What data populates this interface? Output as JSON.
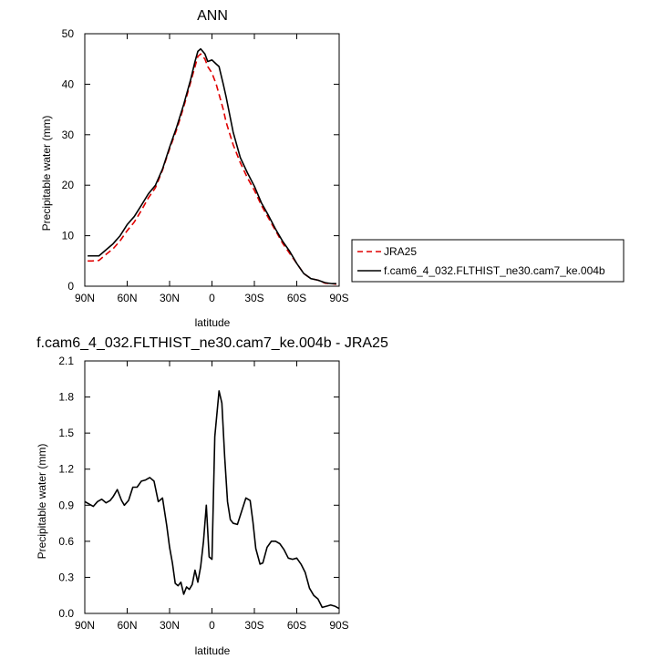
{
  "chart_data": [
    {
      "type": "line",
      "title": "ANN",
      "xlabel": "latitude",
      "ylabel": "Precipitable water (mm)",
      "xlim": [
        90,
        -90
      ],
      "ylim": [
        0,
        50
      ],
      "x_ticks": [
        90,
        60,
        30,
        0,
        -30,
        -60,
        -90
      ],
      "x_tick_labels": [
        "90N",
        "60N",
        "30N",
        "0",
        "30S",
        "60S",
        "90S"
      ],
      "y_ticks": [
        0,
        10,
        20,
        30,
        40,
        50
      ],
      "y_tick_labels": [
        "0",
        "10",
        "20",
        "30",
        "40",
        "50"
      ],
      "legend_position": "right",
      "series": [
        {
          "name": "JRA25",
          "color": "#e00000",
          "dash": "dashed",
          "x": [
            88,
            85,
            80,
            75,
            70,
            65,
            60,
            55,
            50,
            45,
            40,
            35,
            30,
            25,
            20,
            15,
            12,
            10,
            8,
            5,
            3,
            0,
            -3,
            -5,
            -8,
            -10,
            -15,
            -20,
            -25,
            -30,
            -35,
            -40,
            -45,
            -50,
            -55,
            -60,
            -65,
            -70,
            -75,
            -80,
            -85,
            -88
          ],
          "y": [
            5.0,
            5.0,
            5.1,
            6.3,
            7.4,
            9.0,
            11.0,
            12.7,
            15.0,
            17.5,
            19.5,
            23.0,
            27.2,
            31.0,
            35.5,
            40.5,
            43.5,
            45.5,
            46.0,
            45.0,
            43.5,
            42.2,
            40.0,
            38.0,
            35.0,
            32.5,
            28.0,
            24.5,
            21.5,
            19.0,
            16.0,
            13.5,
            11.0,
            8.5,
            6.5,
            4.5,
            2.5,
            1.5,
            1.2,
            0.6,
            0.5,
            0.4
          ]
        },
        {
          "name": "f.cam6_4_032.FLTHIST_ne30.cam7_ke.004b",
          "color": "#000000",
          "dash": "solid",
          "x": [
            88,
            85,
            80,
            75,
            70,
            65,
            60,
            55,
            50,
            45,
            40,
            35,
            30,
            25,
            20,
            15,
            12,
            10,
            8,
            5,
            3,
            0,
            -3,
            -5,
            -8,
            -10,
            -15,
            -20,
            -25,
            -30,
            -35,
            -40,
            -45,
            -50,
            -55,
            -60,
            -65,
            -70,
            -75,
            -80,
            -85,
            -88
          ],
          "y": [
            6.0,
            6.0,
            6.0,
            7.2,
            8.4,
            10.0,
            12.2,
            13.8,
            16.0,
            18.3,
            20.0,
            23.2,
            27.5,
            31.5,
            36.0,
            41.0,
            44.5,
            46.5,
            47.0,
            46.0,
            44.5,
            44.8,
            44.0,
            43.5,
            40.0,
            37.5,
            30.5,
            25.5,
            22.5,
            19.8,
            16.5,
            14.0,
            11.3,
            8.9,
            6.9,
            4.5,
            2.5,
            1.5,
            1.2,
            0.7,
            0.5,
            0.5
          ]
        }
      ]
    },
    {
      "type": "line",
      "title": "f.cam6_4_032.FLTHIST_ne30.cam7_ke.004b - JRA25",
      "xlabel": "latitude",
      "ylabel": "Precipitable water (mm)",
      "xlim": [
        90,
        -90
      ],
      "ylim": [
        0,
        2.1
      ],
      "x_ticks": [
        90,
        60,
        30,
        0,
        -30,
        -60,
        -90
      ],
      "x_tick_labels": [
        "90N",
        "60N",
        "30N",
        "0",
        "30S",
        "60S",
        "90S"
      ],
      "y_ticks": [
        0,
        0.3,
        0.6,
        0.9,
        1.2,
        1.5,
        1.8,
        2.1
      ],
      "y_tick_labels": [
        "0.0",
        "0.3",
        "0.6",
        "0.9",
        "1.2",
        "1.5",
        "1.8",
        "2.1"
      ],
      "series": [
        {
          "color": "#000000",
          "x": [
            90,
            87,
            84,
            81,
            78,
            75,
            72,
            70,
            67,
            64,
            62,
            59,
            56,
            53,
            50,
            47,
            44,
            41,
            38,
            35,
            32,
            30,
            28,
            26,
            24,
            22,
            20,
            18,
            16,
            14,
            12,
            10,
            8,
            6,
            4,
            2,
            0,
            -2,
            -5,
            -7,
            -9,
            -11,
            -13,
            -15,
            -18,
            -21,
            -24,
            -27,
            -29,
            -31,
            -34,
            -36,
            -39,
            -42,
            -45,
            -48,
            -51,
            -54,
            -57,
            -60,
            -63,
            -66,
            -69,
            -72,
            -75,
            -78,
            -81,
            -84,
            -87,
            -90
          ],
          "y": [
            0.93,
            0.91,
            0.89,
            0.93,
            0.95,
            0.92,
            0.94,
            0.97,
            1.03,
            0.94,
            0.9,
            0.94,
            1.05,
            1.05,
            1.1,
            1.11,
            1.13,
            1.1,
            0.93,
            0.96,
            0.73,
            0.55,
            0.42,
            0.25,
            0.23,
            0.26,
            0.16,
            0.22,
            0.2,
            0.24,
            0.36,
            0.26,
            0.39,
            0.6,
            0.9,
            0.47,
            0.45,
            1.47,
            1.85,
            1.75,
            1.3,
            0.93,
            0.78,
            0.75,
            0.74,
            0.85,
            0.96,
            0.94,
            0.76,
            0.54,
            0.41,
            0.42,
            0.55,
            0.6,
            0.6,
            0.58,
            0.53,
            0.46,
            0.45,
            0.46,
            0.41,
            0.34,
            0.21,
            0.15,
            0.12,
            0.05,
            0.06,
            0.07,
            0.06,
            0.04
          ]
        }
      ]
    }
  ]
}
